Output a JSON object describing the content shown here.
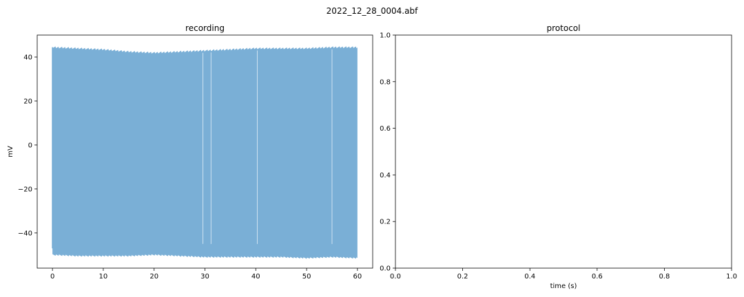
{
  "figure": {
    "suptitle": "2022_12_28_0004.abf"
  },
  "chart_data": [
    {
      "type": "line",
      "title": "recording",
      "xlabel": "",
      "ylabel": "mV",
      "xlim": [
        -3.0,
        63.0
      ],
      "ylim": [
        -56.0,
        50.0
      ],
      "x_ticks": [
        0,
        10,
        20,
        30,
        40,
        50,
        60
      ],
      "y_ticks": [
        -40,
        -20,
        0,
        20,
        40
      ],
      "grid": false,
      "legend": "none",
      "color": "#6fa8d2",
      "series": [
        {
          "name": "",
          "x_range": [
            0,
            60
          ],
          "envelope_x": [
            0,
            5,
            10,
            15,
            20,
            25,
            30,
            35,
            40,
            45,
            50,
            55,
            60
          ],
          "upper_mV": [
            44.5,
            44.0,
            43.5,
            42.5,
            42.0,
            42.5,
            43.0,
            43.5,
            44.0,
            44.0,
            44.0,
            44.5,
            44.5
          ],
          "lower_mV": [
            -50.0,
            -50.5,
            -50.5,
            -50.5,
            -50.0,
            -50.5,
            -51.0,
            -51.0,
            -51.0,
            -51.0,
            -51.5,
            -51.0,
            -51.5
          ],
          "gaps_x": [
            29.6,
            31.2,
            40.3,
            55.0
          ]
        }
      ]
    },
    {
      "type": "line",
      "title": "protocol",
      "xlabel": "time (s)",
      "ylabel": "",
      "xlim": [
        0.0,
        1.0
      ],
      "ylim": [
        0.0,
        1.0
      ],
      "x_ticks": [
        0.0,
        0.2,
        0.4,
        0.6,
        0.8,
        1.0
      ],
      "y_ticks": [
        0.0,
        0.2,
        0.4,
        0.6,
        0.8,
        1.0
      ],
      "grid": false,
      "legend": "none",
      "series": []
    }
  ]
}
